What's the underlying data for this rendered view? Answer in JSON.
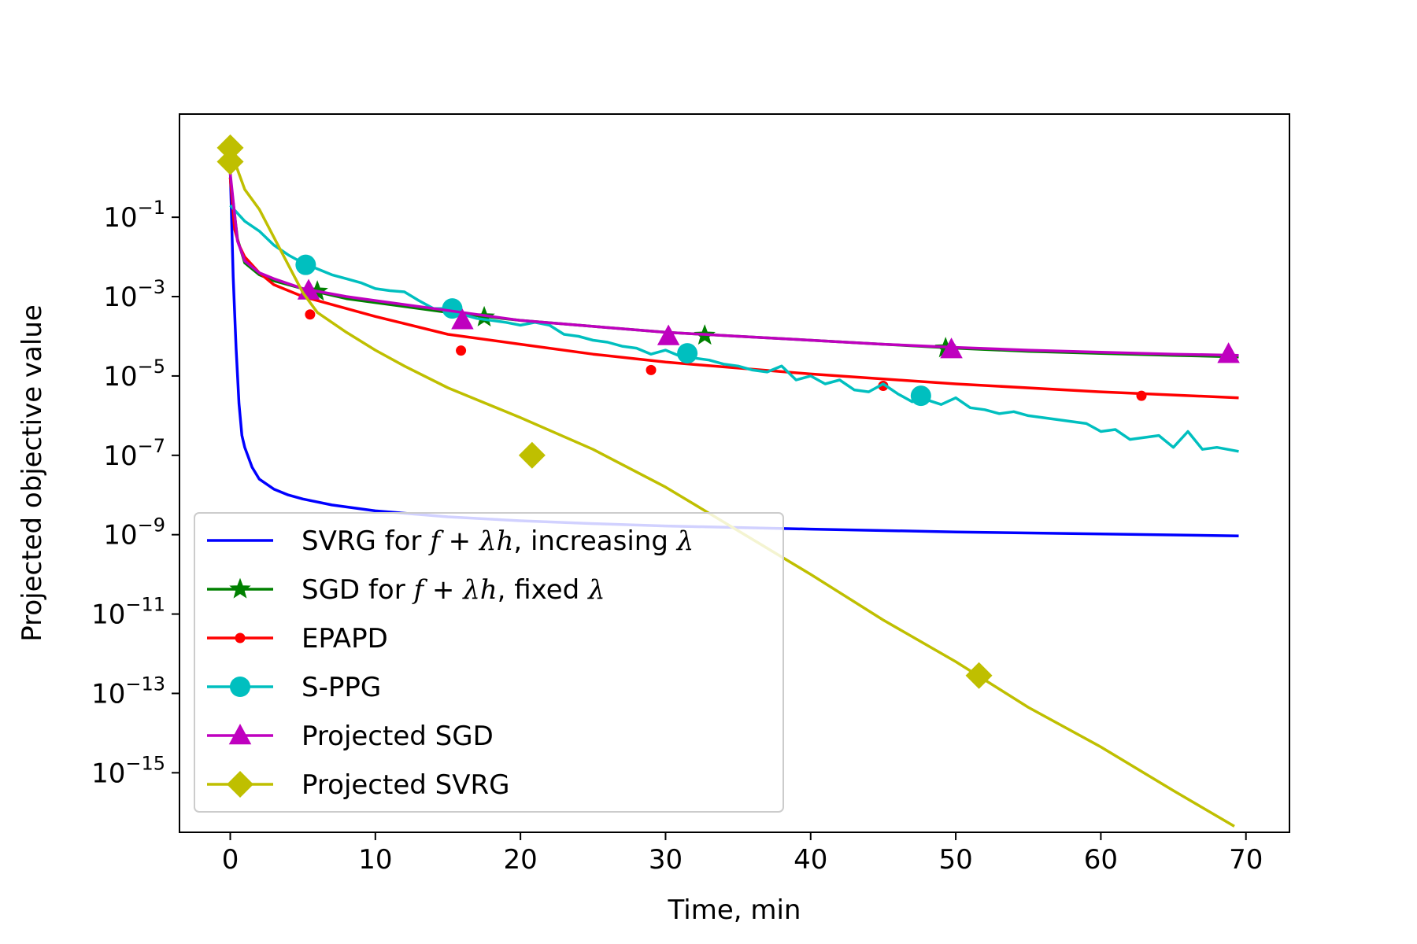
{
  "chart_data": {
    "type": "line",
    "title": "",
    "xlabel": "Time, min",
    "ylabel": "Projected objective value",
    "xlim": [
      -3.5,
      73
    ],
    "ylim_log10": [
      -16.5,
      1.6
    ],
    "yscale": "log",
    "x_ticks": [
      0,
      10,
      20,
      30,
      40,
      50,
      60,
      70
    ],
    "x_tick_labels": [
      "0",
      "10",
      "20",
      "30",
      "40",
      "50",
      "60",
      "70"
    ],
    "y_ticks": [
      -1,
      -3,
      -5,
      -7,
      -9,
      -11,
      -13,
      -15
    ],
    "y_tick_labels": [
      {
        "base": "10",
        "exp": "−1"
      },
      {
        "base": "10",
        "exp": "−3"
      },
      {
        "base": "10",
        "exp": "−5"
      },
      {
        "base": "10",
        "exp": "−7"
      },
      {
        "base": "10",
        "exp": "−9"
      },
      {
        "base": "10",
        "exp": "−11"
      },
      {
        "base": "10",
        "exp": "−13"
      },
      {
        "base": "10",
        "exp": "−15"
      }
    ],
    "legend_position": "lower-left",
    "series": [
      {
        "name": "SVRG for f + λh, increasing λ",
        "legend_parts": [
          {
            "t": "SVRG for "
          },
          {
            "t": "f",
            "i": true
          },
          {
            "t": " + "
          },
          {
            "t": "λh",
            "i": true
          },
          {
            "t": ", increasing "
          },
          {
            "t": "λ",
            "i": true
          }
        ],
        "color": "#0000ff",
        "marker": "none",
        "x": [
          0,
          0.2,
          0.4,
          0.6,
          0.8,
          1.0,
          1.5,
          2,
          3,
          4,
          5,
          7,
          10,
          15,
          20,
          25,
          30,
          40,
          50,
          60,
          69.5
        ],
        "log10y": [
          0.2,
          -2.5,
          -4.3,
          -5.7,
          -6.5,
          -6.8,
          -7.3,
          -7.6,
          -7.85,
          -8.0,
          -8.1,
          -8.25,
          -8.4,
          -8.55,
          -8.65,
          -8.72,
          -8.78,
          -8.86,
          -8.93,
          -8.98,
          -9.03
        ],
        "markers_x": [],
        "markers_log10y": []
      },
      {
        "name": "SGD for f + λh, fixed λ",
        "legend_parts": [
          {
            "t": "SGD for "
          },
          {
            "t": "f",
            "i": true
          },
          {
            "t": " + "
          },
          {
            "t": "λh",
            "i": true
          },
          {
            "t": ", fixed "
          },
          {
            "t": "λ",
            "i": true
          }
        ],
        "color": "#008000",
        "marker": "star",
        "x": [
          0,
          0.5,
          1,
          2,
          3,
          5,
          8,
          10,
          15,
          20,
          25,
          30,
          35,
          40,
          45,
          50,
          55,
          60,
          65,
          69.5
        ],
        "log10y": [
          0,
          -1.55,
          -2.15,
          -2.45,
          -2.6,
          -2.8,
          -3.05,
          -3.15,
          -3.4,
          -3.6,
          -3.75,
          -3.9,
          -4.0,
          -4.1,
          -4.2,
          -4.3,
          -4.38,
          -4.43,
          -4.48,
          -4.52
        ],
        "markers_x": [
          6.0,
          17.5,
          32.7,
          49.3
        ],
        "markers_log10y": [
          -2.87,
          -3.52,
          -3.98,
          -4.3
        ]
      },
      {
        "name": "EPAPD",
        "legend_parts": [
          {
            "t": "EPAPD"
          }
        ],
        "color": "#ff0000",
        "marker": "dot",
        "x": [
          0,
          0.3,
          0.6,
          1,
          2,
          3,
          5,
          8,
          10,
          15,
          20,
          25,
          30,
          40,
          50,
          60,
          69.5
        ],
        "log10y": [
          0,
          -1.3,
          -1.7,
          -2.0,
          -2.4,
          -2.7,
          -3.0,
          -3.3,
          -3.5,
          -3.95,
          -4.2,
          -4.45,
          -4.65,
          -4.95,
          -5.2,
          -5.4,
          -5.55
        ],
        "markers_x": [
          5.5,
          15.9,
          29.0,
          45.0,
          62.8
        ],
        "markers_log10y": [
          -3.45,
          -4.36,
          -4.85,
          -5.25,
          -5.5
        ]
      },
      {
        "name": "S-PPG",
        "legend_parts": [
          {
            "t": "S-PPG"
          }
        ],
        "color": "#00bfbf",
        "marker": "circle",
        "x": [
          0,
          1,
          2,
          3,
          4,
          5,
          6,
          7,
          8,
          9,
          10,
          11,
          12,
          13,
          14,
          15,
          16,
          17,
          18,
          19,
          20,
          21,
          22,
          23,
          24,
          25,
          26,
          27,
          28,
          29,
          30,
          31,
          32,
          33,
          34,
          35,
          36,
          37,
          38,
          39,
          40,
          41,
          42,
          43,
          44,
          45,
          46,
          47,
          48,
          49,
          50,
          51,
          52,
          53,
          54,
          55,
          56,
          57,
          58,
          59,
          60,
          61,
          62,
          63,
          64,
          65,
          66,
          67,
          68,
          69.5
        ],
        "log10y": [
          -0.7,
          -1.1,
          -1.35,
          -1.7,
          -1.95,
          -2.15,
          -2.3,
          -2.45,
          -2.55,
          -2.65,
          -2.8,
          -2.85,
          -2.88,
          -3.1,
          -3.3,
          -3.3,
          -3.45,
          -3.55,
          -3.6,
          -3.65,
          -3.72,
          -3.65,
          -3.72,
          -3.95,
          -4.0,
          -4.1,
          -4.15,
          -4.25,
          -4.3,
          -4.45,
          -4.35,
          -4.5,
          -4.55,
          -4.6,
          -4.7,
          -4.75,
          -4.85,
          -4.9,
          -4.75,
          -5.1,
          -5.0,
          -5.2,
          -5.1,
          -5.35,
          -5.4,
          -5.2,
          -5.45,
          -5.65,
          -5.6,
          -5.72,
          -5.55,
          -5.8,
          -5.85,
          -5.95,
          -5.9,
          -6.0,
          -6.05,
          -6.1,
          -6.15,
          -6.2,
          -6.4,
          -6.35,
          -6.6,
          -6.55,
          -6.5,
          -6.8,
          -6.4,
          -6.85,
          -6.8,
          -6.9
        ],
        "markers_x": [
          5.2,
          15.3,
          31.5,
          47.6
        ],
        "markers_log10y": [
          -2.2,
          -3.3,
          -4.43,
          -5.5
        ]
      },
      {
        "name": "Projected SGD",
        "legend_parts": [
          {
            "t": "Projected SGD"
          }
        ],
        "color": "#bf00bf",
        "marker": "triangle",
        "x": [
          0,
          0.5,
          1,
          2,
          3,
          5,
          8,
          10,
          15,
          20,
          25,
          30,
          35,
          40,
          45,
          50,
          55,
          60,
          65,
          69.5
        ],
        "log10y": [
          0.1,
          -1.6,
          -2.1,
          -2.4,
          -2.55,
          -2.8,
          -3.0,
          -3.1,
          -3.35,
          -3.6,
          -3.75,
          -3.9,
          -4.0,
          -4.1,
          -4.2,
          -4.28,
          -4.35,
          -4.4,
          -4.45,
          -4.48
        ],
        "markers_x": [
          5.4,
          16.0,
          30.2,
          49.7,
          68.8
        ],
        "markers_log10y": [
          -2.85,
          -3.6,
          -4.0,
          -4.33,
          -4.45
        ]
      },
      {
        "name": "Projected SVRG",
        "legend_parts": [
          {
            "t": "Projected SVRG"
          }
        ],
        "color": "#bfbf00",
        "marker": "diamond",
        "x": [
          0,
          0.5,
          1,
          2,
          3,
          4,
          5,
          6,
          8,
          10,
          12,
          15,
          20,
          25,
          30,
          35,
          40,
          45,
          50,
          55,
          60,
          65,
          69.2
        ],
        "log10y": [
          0.7,
          0.2,
          -0.3,
          -0.8,
          -1.5,
          -2.2,
          -2.9,
          -3.4,
          -3.9,
          -4.35,
          -4.75,
          -5.3,
          -6.05,
          -6.85,
          -7.8,
          -8.9,
          -10.0,
          -11.15,
          -12.2,
          -13.35,
          -14.35,
          -15.45,
          -16.35
        ],
        "markers_x": [
          0,
          0,
          20.8,
          51.6
        ],
        "markers_log10y": [
          0.75,
          0.4,
          -7.0,
          -12.55
        ]
      }
    ]
  }
}
